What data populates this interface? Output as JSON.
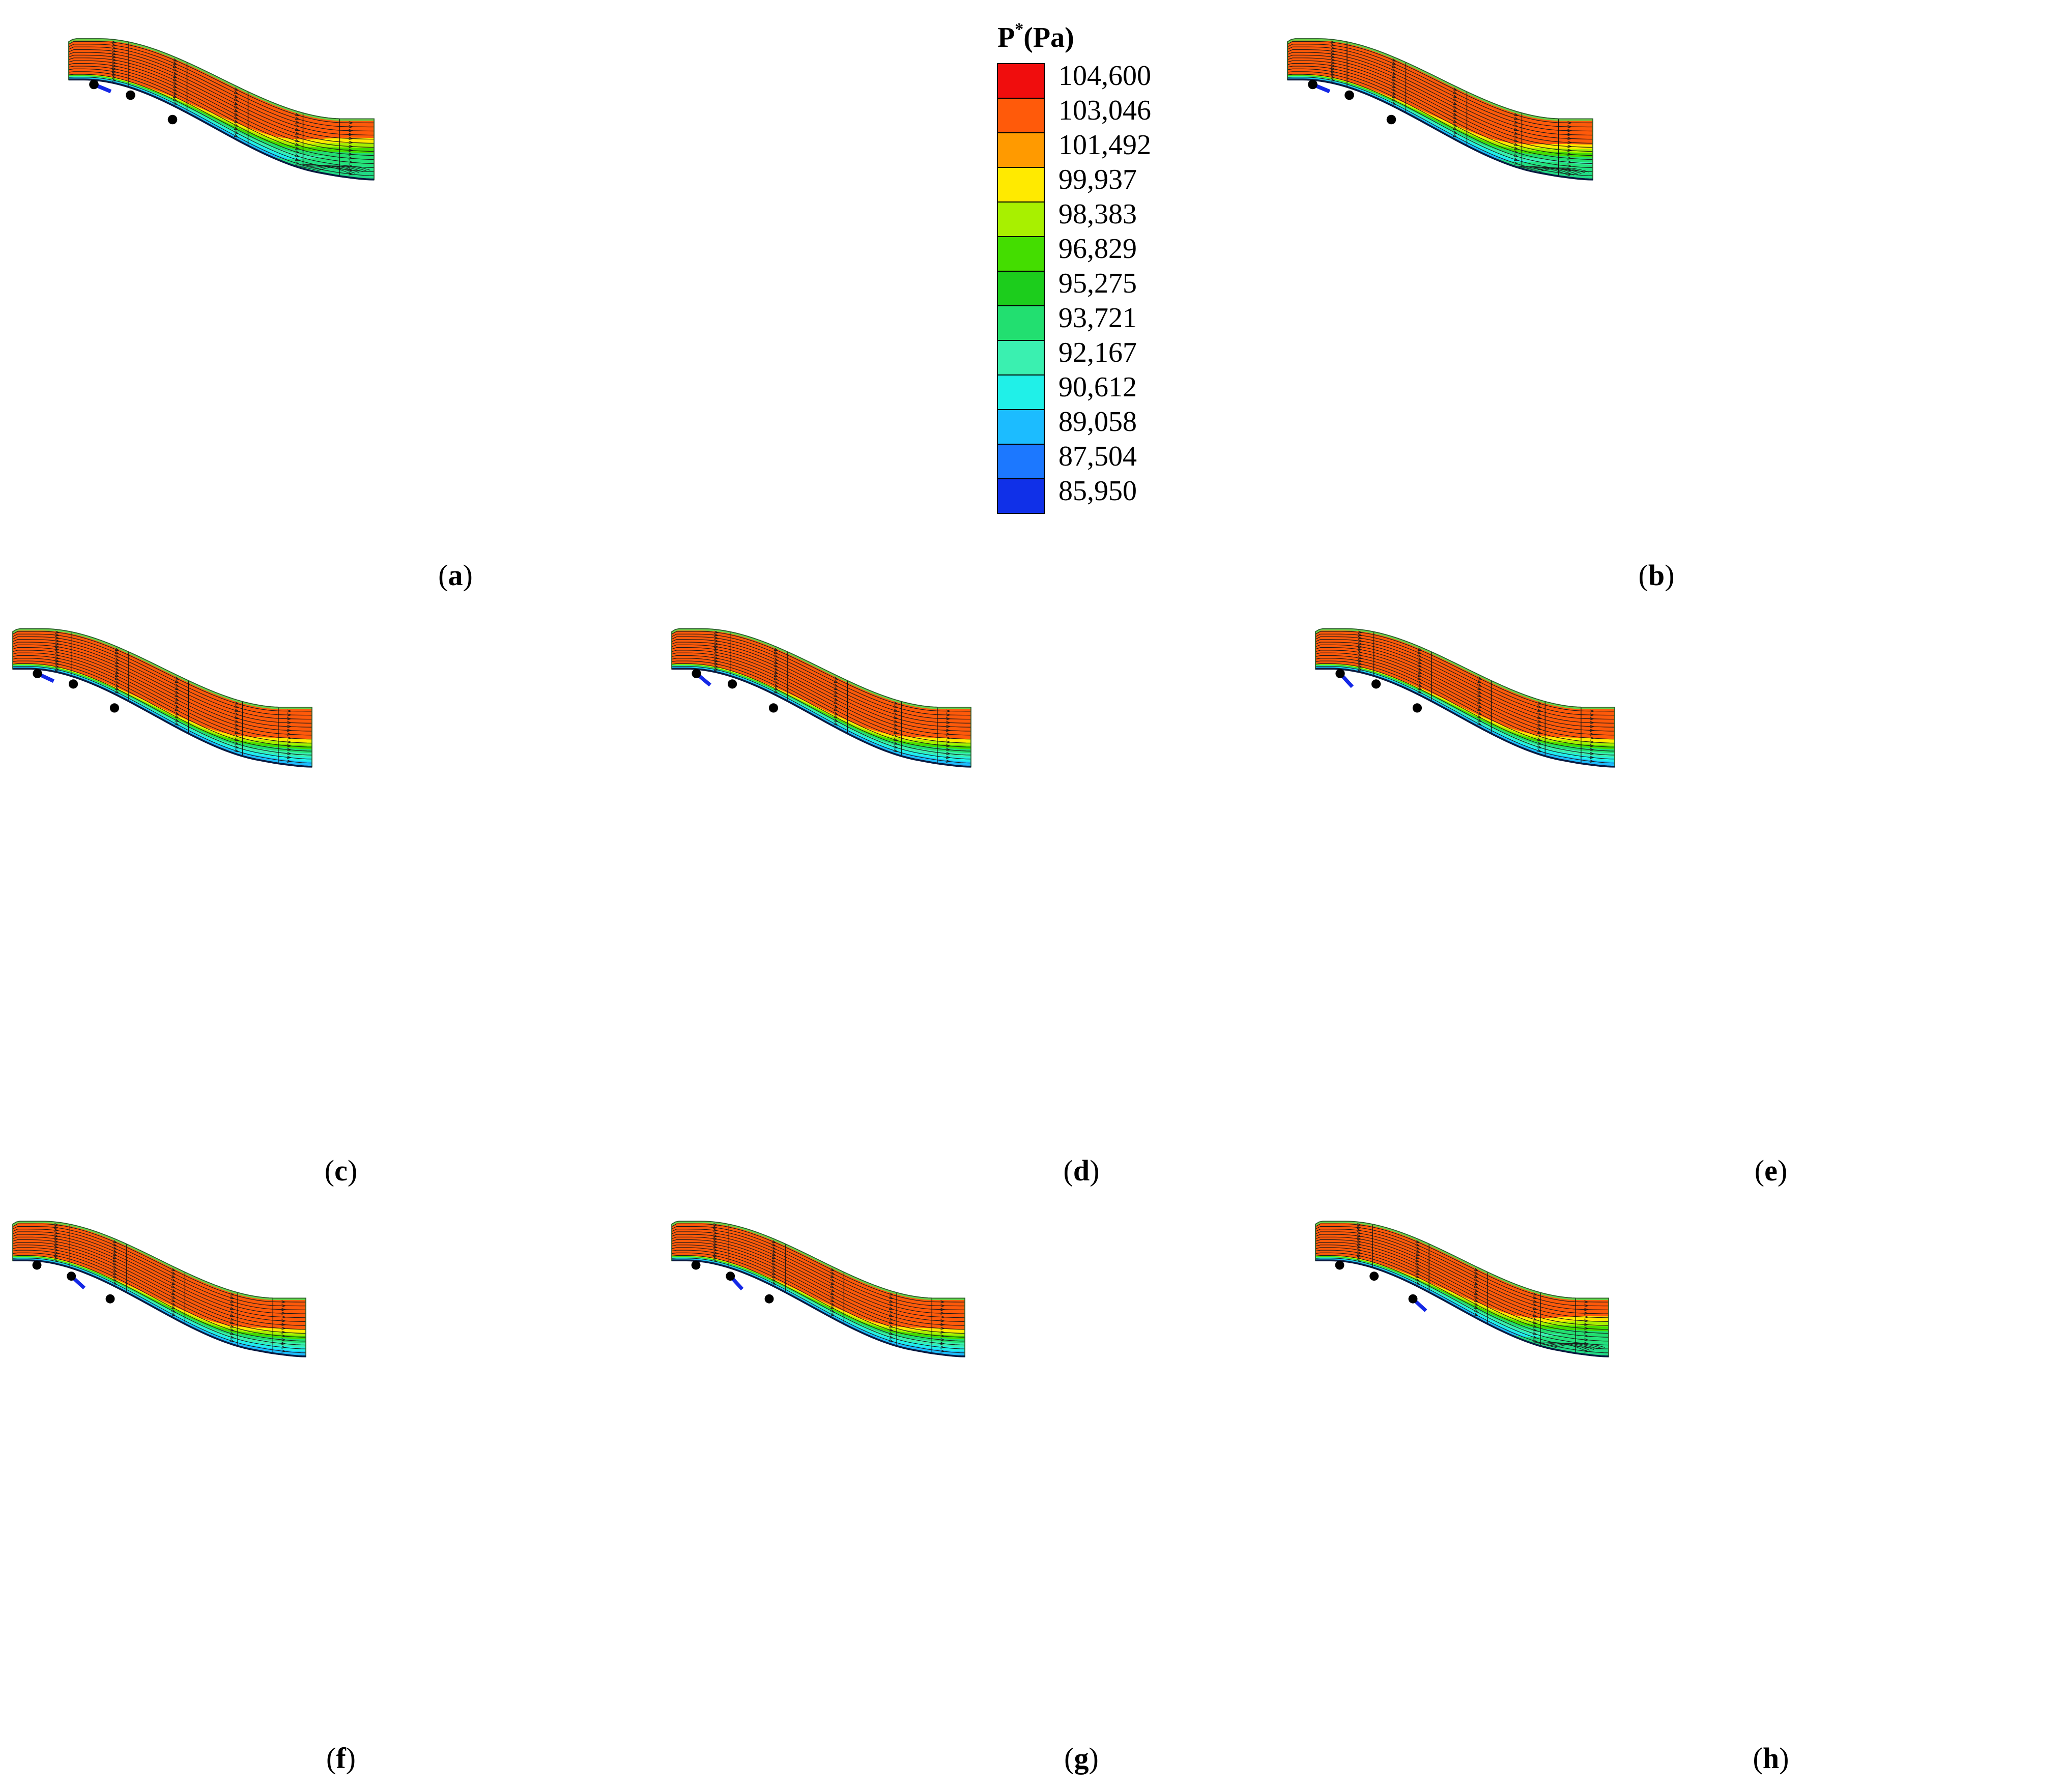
{
  "legend": {
    "title_main": "P",
    "title_sup": "*",
    "title_unit": "(Pa)",
    "values": [
      "104,600",
      "103,046",
      "101,492",
      "99,937",
      "98,383",
      "96,829",
      "95,275",
      "93,721",
      "92,167",
      "90,612",
      "89,058",
      "87,504",
      "85,950"
    ],
    "colors": [
      "#f00d0d",
      "#ff5a0a",
      "#ff9a00",
      "#ffea00",
      "#a8f000",
      "#44dd00",
      "#1ccd1c",
      "#22df70",
      "#3af0b0",
      "#20f0e8",
      "#1cbcff",
      "#1c78ff",
      "#1030e8"
    ]
  },
  "panels": [
    {
      "id": "a",
      "label": "a",
      "hole": 1,
      "vortex": "large",
      "flap": 0.05
    },
    {
      "id": "b",
      "label": "b",
      "hole": 1,
      "vortex": "medium",
      "flap": 0.05
    },
    {
      "id": "c",
      "label": "c",
      "hole": 1,
      "vortex": "small",
      "flap": 0.1
    },
    {
      "id": "d",
      "label": "d",
      "hole": 1,
      "vortex": "small",
      "flap": 0.4
    },
    {
      "id": "e",
      "label": "e",
      "hole": 1,
      "vortex": "small",
      "flap": 0.55
    },
    {
      "id": "f",
      "label": "f",
      "hole": 2,
      "vortex": "small",
      "flap": 0.45
    },
    {
      "id": "g",
      "label": "g",
      "hole": 2,
      "vortex": "small",
      "flap": 0.55
    },
    {
      "id": "h",
      "label": "h",
      "hole": 3,
      "vortex": "large",
      "flap": 0.45
    }
  ],
  "style": {
    "core_color": "#ff5a0a",
    "wall_color": "#1030e8",
    "flap_color": "#1428e6",
    "marker_color": "#000000",
    "streamline_color": "#1a1a1a"
  }
}
